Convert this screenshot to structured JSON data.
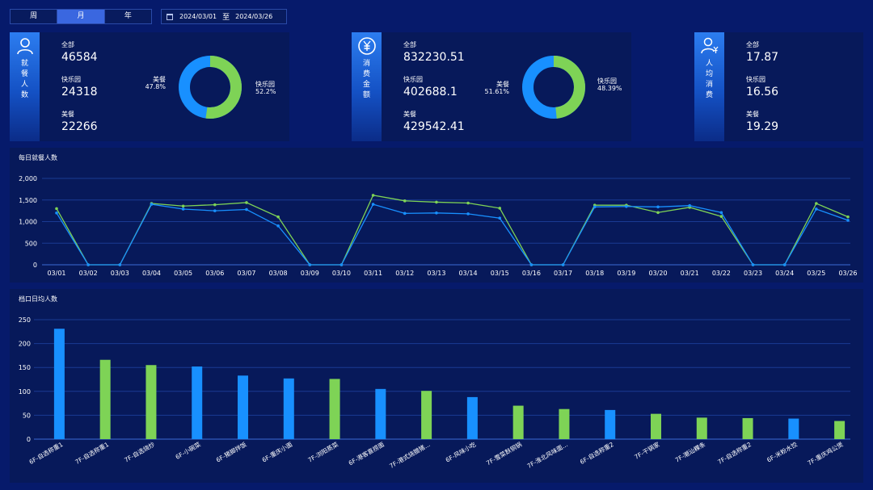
{
  "toolbar": {
    "tabs": [
      {
        "label": "周",
        "active": false
      },
      {
        "label": "月",
        "active": true
      },
      {
        "label": "年",
        "active": false
      }
    ],
    "date_start": "2024/03/01",
    "date_sep": "至",
    "date_end": "2024/03/26"
  },
  "colors": {
    "blue": "#1890ff",
    "green": "#7ed356",
    "bg": "#061a6b",
    "panel": "#07195a"
  },
  "cards": [
    {
      "title": "就餐人数",
      "icon": "user-icon",
      "stats": [
        {
          "label": "全部",
          "value": "46584"
        },
        {
          "label": "快乐园",
          "value": "24318"
        },
        {
          "label": "美餐",
          "value": "22266"
        }
      ],
      "donut": {
        "left_name": "美餐",
        "left_pct": "47.8%",
        "left_value": 47.8,
        "right_name": "快乐园",
        "right_pct": "52.2%",
        "right_value": 52.2
      }
    },
    {
      "title": "消费金额",
      "icon": "yen-icon",
      "stats": [
        {
          "label": "全部",
          "value": "832230.51"
        },
        {
          "label": "快乐园",
          "value": "402688.1"
        },
        {
          "label": "美餐",
          "value": "429542.41"
        }
      ],
      "donut": {
        "left_name": "美餐",
        "left_pct": "51.61%",
        "left_value": 51.61,
        "right_name": "快乐园",
        "right_pct": "48.39%",
        "right_value": 48.39
      }
    },
    {
      "title": "人均消费",
      "icon": "user-yen-icon",
      "stats": [
        {
          "label": "全部",
          "value": "17.87"
        },
        {
          "label": "快乐园",
          "value": "16.56"
        },
        {
          "label": "美餐",
          "value": "19.29"
        }
      ]
    }
  ],
  "line_panel": {
    "title": "每日就餐人数"
  },
  "bar_panel": {
    "title": "档口日均人数"
  },
  "chart_data": [
    {
      "type": "line",
      "x": [
        "03/01",
        "03/02",
        "03/03",
        "03/04",
        "03/05",
        "03/06",
        "03/07",
        "03/08",
        "03/09",
        "03/10",
        "03/11",
        "03/12",
        "03/13",
        "03/14",
        "03/15",
        "03/16",
        "03/17",
        "03/18",
        "03/19",
        "03/20",
        "03/21",
        "03/22",
        "03/23",
        "03/24",
        "03/25",
        "03/26"
      ],
      "yticks": [
        "0",
        "500",
        "1,000",
        "1,500",
        "2,000"
      ],
      "ylim": [
        0,
        2000
      ],
      "grid": true,
      "series": [
        {
          "color": "#7ed356",
          "values": [
            1300,
            0,
            0,
            1420,
            1360,
            1390,
            1440,
            1110,
            0,
            0,
            1610,
            1480,
            1450,
            1430,
            1310,
            0,
            0,
            1380,
            1380,
            1210,
            1330,
            1120,
            0,
            0,
            1420,
            1110
          ]
        },
        {
          "color": "#1890ff",
          "values": [
            1200,
            0,
            0,
            1400,
            1290,
            1250,
            1280,
            900,
            0,
            0,
            1400,
            1190,
            1200,
            1180,
            1080,
            0,
            0,
            1340,
            1350,
            1340,
            1370,
            1210,
            0,
            0,
            1290,
            1030
          ]
        }
      ]
    },
    {
      "type": "bar",
      "categories": [
        "6F-自选称重1",
        "7F-自选称重1",
        "7F-自选烧炒",
        "6F-小碗菜",
        "6F-猪脚拌饭",
        "6F-重庆小面",
        "7F-浏阳蒸菜",
        "6F-港客喜捞面",
        "7F-港式烧腊猪...",
        "6F-风味小吃",
        "7F-雪菜麸铜锅",
        "7F-淮北风味面...",
        "6F-自选称重2",
        "7F-干锅家",
        "7F-潮汕粿条",
        "7F-自选称重2",
        "6F-米粉水饺",
        "7F-重庆鸡公煲"
      ],
      "values": [
        231,
        166,
        155,
        152,
        133,
        127,
        126,
        105,
        101,
        88,
        70,
        63,
        61,
        53,
        45,
        44,
        43,
        38
      ],
      "colors": [
        "#1890ff",
        "#7ed356",
        "#7ed356",
        "#1890ff",
        "#1890ff",
        "#1890ff",
        "#7ed356",
        "#1890ff",
        "#7ed356",
        "#1890ff",
        "#7ed356",
        "#7ed356",
        "#1890ff",
        "#7ed356",
        "#7ed356",
        "#7ed356",
        "#1890ff",
        "#7ed356"
      ],
      "yticks": [
        "0",
        "50",
        "100",
        "150",
        "200",
        "250"
      ],
      "ylim": [
        0,
        250
      ],
      "grid": true
    }
  ]
}
